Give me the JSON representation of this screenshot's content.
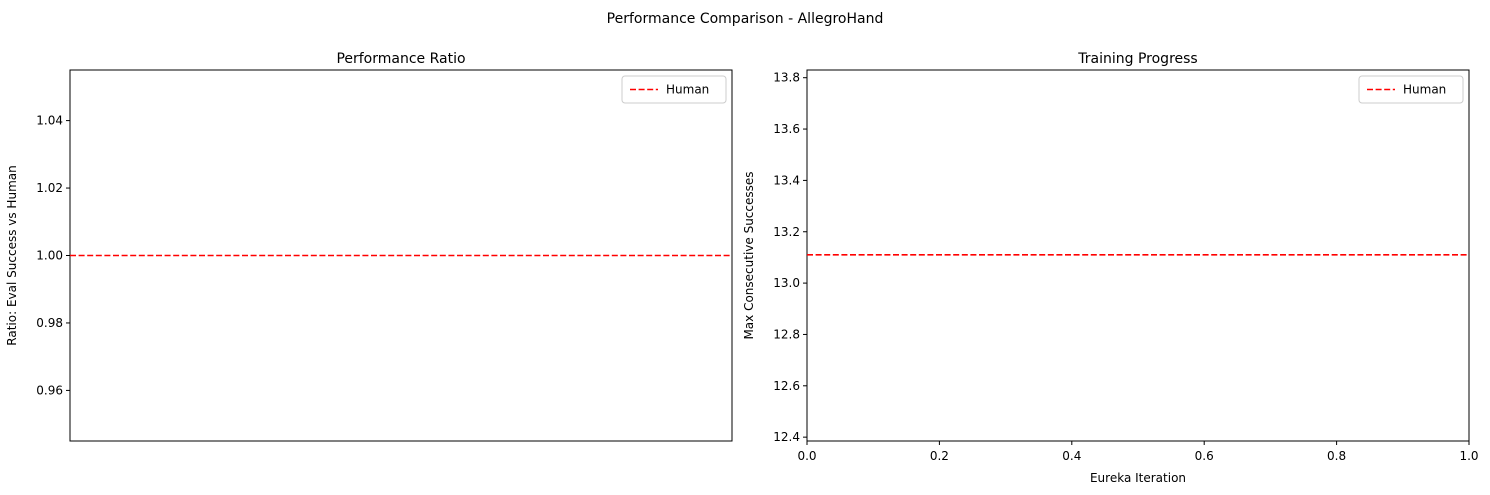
{
  "figure": {
    "suptitle": "Performance Comparison - AllegroHand"
  },
  "colors": {
    "reference_line": "#ff0000",
    "axes": "#000000",
    "background": "#ffffff"
  },
  "chart_data": [
    {
      "type": "line",
      "title": "Performance Ratio",
      "xlabel": "",
      "ylabel": "Ratio: Eval Success vs Human",
      "ylim": [
        0.945,
        1.055
      ],
      "yticks": [
        0.96,
        0.98,
        1.0,
        1.02,
        1.04
      ],
      "ytick_labels": [
        "0.96",
        "0.98",
        "1.00",
        "1.02",
        "1.04"
      ],
      "xticks_visible": false,
      "series": [],
      "reference_lines": [
        {
          "name": "Human",
          "orientation": "horizontal",
          "y": 1.0,
          "style": "dashed"
        }
      ],
      "legend": {
        "placement": "top-right",
        "entries": [
          "Human"
        ]
      },
      "grid": false
    },
    {
      "type": "line",
      "title": "Training Progress",
      "xlabel": "Eureka Iteration",
      "ylabel": "Max Consecutive Successes",
      "xlim": [
        0,
        1
      ],
      "ylim": [
        12.385,
        13.83
      ],
      "xticks": [
        0.0,
        0.2,
        0.4,
        0.6,
        0.8,
        1.0
      ],
      "xtick_labels": [
        "0.0",
        "0.2",
        "0.4",
        "0.6",
        "0.8",
        "1.0"
      ],
      "yticks": [
        12.4,
        12.6,
        12.8,
        13.0,
        13.2,
        13.4,
        13.6,
        13.8
      ],
      "ytick_labels": [
        "12.4",
        "12.6",
        "12.8",
        "13.0",
        "13.2",
        "13.4",
        "13.6",
        "13.8"
      ],
      "series": [],
      "reference_lines": [
        {
          "name": "Human",
          "orientation": "horizontal",
          "y": 13.11,
          "style": "dashed"
        }
      ],
      "legend": {
        "placement": "top-right",
        "entries": [
          "Human"
        ]
      },
      "grid": false
    }
  ]
}
